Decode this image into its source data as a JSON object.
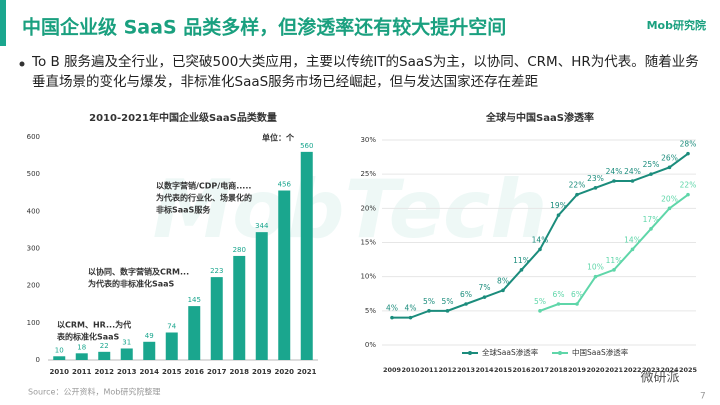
{
  "header": {
    "title": "中国企业级 SaaS 品类多样，但渗透率还有较大提升空间",
    "logo": "Mob研究院"
  },
  "bullet": "To B 服务遍及全行业，已突破500大类应用，主要以传统IT的SaaS为主，以协同、CRM、HR为代表。随着业务垂直场景的变化与爆发，非标准化SaaS服务市场已经崛起，但与发达国家还存在差距",
  "chart_data": [
    {
      "type": "bar",
      "title": "2010-2021年中国企业级SaaS品类数量",
      "unit": "单位：个",
      "categories": [
        "2010",
        "2011",
        "2012",
        "2013",
        "2014",
        "2015",
        "2016",
        "2017",
        "2018",
        "2019",
        "2020",
        "2021"
      ],
      "values": [
        10,
        18,
        22,
        31,
        49,
        74,
        145,
        223,
        280,
        344,
        456,
        560
      ],
      "color": "#1aa68e",
      "ylim": [
        0,
        600
      ],
      "yticks": [
        0,
        100,
        200,
        300,
        400,
        500,
        600
      ],
      "grid": false,
      "annotations": [
        {
          "lines": [
            "以CRM、HR...为代",
            "表的标准化SaaS"
          ]
        },
        {
          "lines": [
            "以协同、数字营销及CRM...",
            "为代表的非标准化SaaS"
          ]
        },
        {
          "lines": [
            "以数字营销/CDP/电商.....",
            "为代表的行业化、场景化的",
            "非标SaaS服务"
          ]
        }
      ]
    },
    {
      "type": "line",
      "title": "全球与中国SaaS渗透率",
      "categories": [
        "2009",
        "2010",
        "2011",
        "2012",
        "2013",
        "2014",
        "2015",
        "2016",
        "2017",
        "2018",
        "2019",
        "2020",
        "2021",
        "2022",
        "2023",
        "2024",
        "2025"
      ],
      "series": [
        {
          "name": "全球SaaS渗透率",
          "color": "#1b8c7c",
          "values": [
            4,
            4,
            5,
            5,
            6,
            7,
            8,
            11,
            14,
            19,
            22,
            23,
            24,
            24,
            25,
            26,
            28
          ],
          "value_labels": [
            "4%",
            "4%",
            "5%",
            "5%",
            "6%",
            "7%",
            "8%",
            "11%",
            "14%",
            "19%",
            "22%",
            "23%",
            "24%",
            "24%",
            "25%",
            "26%",
            "28%"
          ]
        },
        {
          "name": "中国SaaS渗透率",
          "color": "#5fd6a9",
          "values": [
            null,
            null,
            null,
            null,
            null,
            null,
            null,
            null,
            5,
            6,
            6,
            10,
            11,
            14,
            17,
            20,
            22
          ],
          "value_labels": [
            null,
            null,
            null,
            null,
            null,
            null,
            null,
            null,
            "5%",
            "6%",
            "6%",
            "10%",
            "11%",
            "14%",
            "17%",
            "20%",
            "22%"
          ]
        }
      ],
      "ylim": [
        0,
        30
      ],
      "yticks": [
        {
          "value": 0,
          "label": "0%"
        },
        {
          "value": 5,
          "label": "5%"
        },
        {
          "value": 10,
          "label": "10%"
        },
        {
          "value": 15,
          "label": "15%"
        },
        {
          "value": 20,
          "label": "20%"
        },
        {
          "value": 25,
          "label": "25%"
        },
        {
          "value": 30,
          "label": "30%"
        }
      ],
      "grid": true,
      "legend": "bottom"
    }
  ],
  "source": "Source：公开资料，Mob研究院整理",
  "page": "7",
  "watermark": "MobTech",
  "wechat": "微研派"
}
